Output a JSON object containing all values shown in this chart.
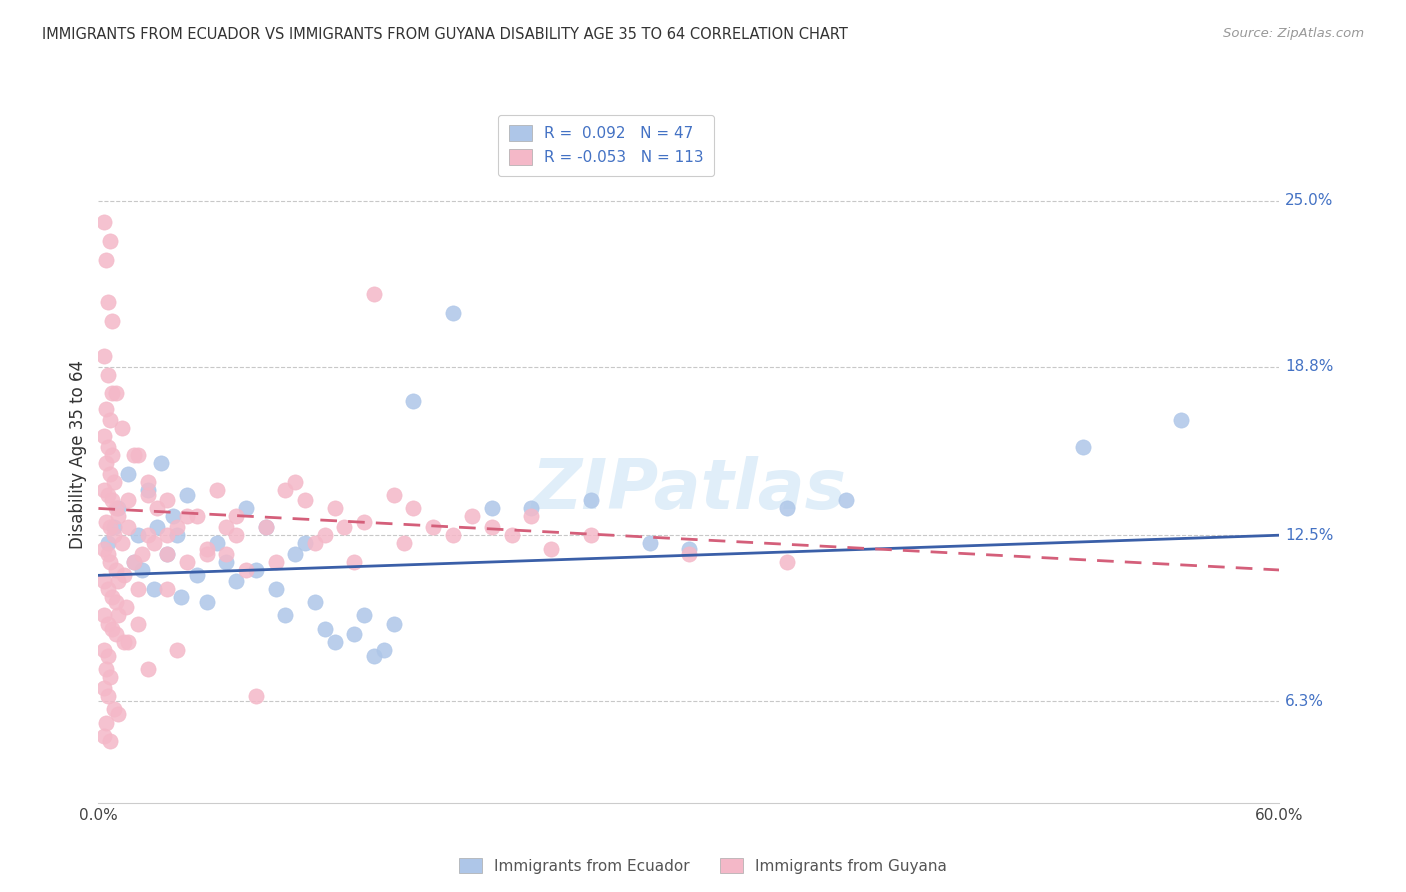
{
  "title": "IMMIGRANTS FROM ECUADOR VS IMMIGRANTS FROM GUYANA DISABILITY AGE 35 TO 64 CORRELATION CHART",
  "source": "Source: ZipAtlas.com",
  "ylabel": "Disability Age 35 to 64",
  "y_ticks": [
    6.3,
    12.5,
    18.8,
    25.0
  ],
  "y_tick_labels": [
    "6.3%",
    "12.5%",
    "18.8%",
    "25.0%"
  ],
  "xlim": [
    0.0,
    60.0
  ],
  "ylim": [
    2.5,
    28.5
  ],
  "ecuador_color": "#aec6e8",
  "guyana_color": "#f4b8c8",
  "ecuador_line_color": "#3a5fa8",
  "guyana_line_color": "#d45f7a",
  "tick_color": "#4472c4",
  "watermark": "ZIPatlas",
  "ecuador_line_y0": 11.0,
  "ecuador_line_y1": 12.5,
  "guyana_line_y0": 13.5,
  "guyana_line_y1": 11.2,
  "ecuador_points": [
    [
      0.5,
      12.2
    ],
    [
      0.8,
      12.8
    ],
    [
      1.0,
      13.5
    ],
    [
      1.5,
      14.8
    ],
    [
      1.8,
      11.5
    ],
    [
      2.0,
      12.5
    ],
    [
      2.2,
      11.2
    ],
    [
      2.5,
      14.2
    ],
    [
      2.8,
      10.5
    ],
    [
      3.0,
      12.8
    ],
    [
      3.2,
      15.2
    ],
    [
      3.5,
      11.8
    ],
    [
      3.8,
      13.2
    ],
    [
      4.0,
      12.5
    ],
    [
      4.2,
      10.2
    ],
    [
      4.5,
      14.0
    ],
    [
      5.0,
      11.0
    ],
    [
      5.5,
      10.0
    ],
    [
      6.0,
      12.2
    ],
    [
      6.5,
      11.5
    ],
    [
      7.0,
      10.8
    ],
    [
      7.5,
      13.5
    ],
    [
      8.0,
      11.2
    ],
    [
      8.5,
      12.8
    ],
    [
      9.0,
      10.5
    ],
    [
      9.5,
      9.5
    ],
    [
      10.0,
      11.8
    ],
    [
      10.5,
      12.2
    ],
    [
      11.0,
      10.0
    ],
    [
      11.5,
      9.0
    ],
    [
      12.0,
      8.5
    ],
    [
      13.0,
      8.8
    ],
    [
      13.5,
      9.5
    ],
    [
      14.0,
      8.0
    ],
    [
      14.5,
      8.2
    ],
    [
      15.0,
      9.2
    ],
    [
      16.0,
      17.5
    ],
    [
      18.0,
      20.8
    ],
    [
      20.0,
      13.5
    ],
    [
      22.0,
      13.5
    ],
    [
      25.0,
      13.8
    ],
    [
      30.0,
      12.0
    ],
    [
      35.0,
      13.5
    ],
    [
      38.0,
      13.8
    ],
    [
      28.0,
      12.2
    ],
    [
      50.0,
      15.8
    ],
    [
      55.0,
      16.8
    ]
  ],
  "guyana_points": [
    [
      0.3,
      24.2
    ],
    [
      0.6,
      23.5
    ],
    [
      0.4,
      22.8
    ],
    [
      0.5,
      21.2
    ],
    [
      0.7,
      20.5
    ],
    [
      0.3,
      19.2
    ],
    [
      0.5,
      18.5
    ],
    [
      0.7,
      17.8
    ],
    [
      0.4,
      17.2
    ],
    [
      0.6,
      16.8
    ],
    [
      0.3,
      16.2
    ],
    [
      0.5,
      15.8
    ],
    [
      0.7,
      15.5
    ],
    [
      0.4,
      15.2
    ],
    [
      0.6,
      14.8
    ],
    [
      0.8,
      14.5
    ],
    [
      0.3,
      14.2
    ],
    [
      0.5,
      14.0
    ],
    [
      0.7,
      13.8
    ],
    [
      0.9,
      13.5
    ],
    [
      1.0,
      13.2
    ],
    [
      0.4,
      13.0
    ],
    [
      0.6,
      12.8
    ],
    [
      0.8,
      12.5
    ],
    [
      1.2,
      12.2
    ],
    [
      0.3,
      12.0
    ],
    [
      0.5,
      11.8
    ],
    [
      0.6,
      11.5
    ],
    [
      0.9,
      11.2
    ],
    [
      1.3,
      11.0
    ],
    [
      0.3,
      10.8
    ],
    [
      0.5,
      10.5
    ],
    [
      0.7,
      10.2
    ],
    [
      0.9,
      10.0
    ],
    [
      1.4,
      9.8
    ],
    [
      0.3,
      9.5
    ],
    [
      0.5,
      9.2
    ],
    [
      0.7,
      9.0
    ],
    [
      0.9,
      8.8
    ],
    [
      1.3,
      8.5
    ],
    [
      0.3,
      8.2
    ],
    [
      0.5,
      8.0
    ],
    [
      0.4,
      7.5
    ],
    [
      0.6,
      7.2
    ],
    [
      0.3,
      6.8
    ],
    [
      0.5,
      6.5
    ],
    [
      0.8,
      6.0
    ],
    [
      1.0,
      5.8
    ],
    [
      0.4,
      5.5
    ],
    [
      0.3,
      5.0
    ],
    [
      0.6,
      4.8
    ],
    [
      2.0,
      15.5
    ],
    [
      2.5,
      14.0
    ],
    [
      3.0,
      13.5
    ],
    [
      3.5,
      12.5
    ],
    [
      4.0,
      12.8
    ],
    [
      4.5,
      11.5
    ],
    [
      5.0,
      13.2
    ],
    [
      5.5,
      12.0
    ],
    [
      6.0,
      14.2
    ],
    [
      6.5,
      11.8
    ],
    [
      7.0,
      12.5
    ],
    [
      7.5,
      11.2
    ],
    [
      8.0,
      6.5
    ],
    [
      8.5,
      12.8
    ],
    [
      9.0,
      11.5
    ],
    [
      10.0,
      14.5
    ],
    [
      10.5,
      13.8
    ],
    [
      11.0,
      12.2
    ],
    [
      12.0,
      13.5
    ],
    [
      12.5,
      12.8
    ],
    [
      13.0,
      11.5
    ],
    [
      14.0,
      21.5
    ],
    [
      15.0,
      14.0
    ],
    [
      16.0,
      13.5
    ],
    [
      18.0,
      12.5
    ],
    [
      20.0,
      12.8
    ],
    [
      22.0,
      13.2
    ],
    [
      25.0,
      12.5
    ],
    [
      30.0,
      11.8
    ],
    [
      35.0,
      11.5
    ],
    [
      1.5,
      13.8
    ],
    [
      2.5,
      12.5
    ],
    [
      3.5,
      11.8
    ],
    [
      1.2,
      16.5
    ],
    [
      0.9,
      17.8
    ],
    [
      1.8,
      15.5
    ],
    [
      2.5,
      14.5
    ],
    [
      3.5,
      13.8
    ],
    [
      1.5,
      12.8
    ],
    [
      2.8,
      12.2
    ],
    [
      4.5,
      13.2
    ],
    [
      1.8,
      11.5
    ],
    [
      2.2,
      11.8
    ],
    [
      1.0,
      9.5
    ],
    [
      2.0,
      9.2
    ],
    [
      3.5,
      10.5
    ],
    [
      5.5,
      11.8
    ],
    [
      7.0,
      13.2
    ],
    [
      1.5,
      8.5
    ],
    [
      2.5,
      7.5
    ],
    [
      4.0,
      8.2
    ],
    [
      1.0,
      10.8
    ],
    [
      2.0,
      10.5
    ],
    [
      6.5,
      12.8
    ],
    [
      9.5,
      14.2
    ],
    [
      11.5,
      12.5
    ],
    [
      13.5,
      13.0
    ],
    [
      15.5,
      12.2
    ],
    [
      17.0,
      12.8
    ],
    [
      19.0,
      13.2
    ],
    [
      21.0,
      12.5
    ],
    [
      23.0,
      12.0
    ]
  ]
}
